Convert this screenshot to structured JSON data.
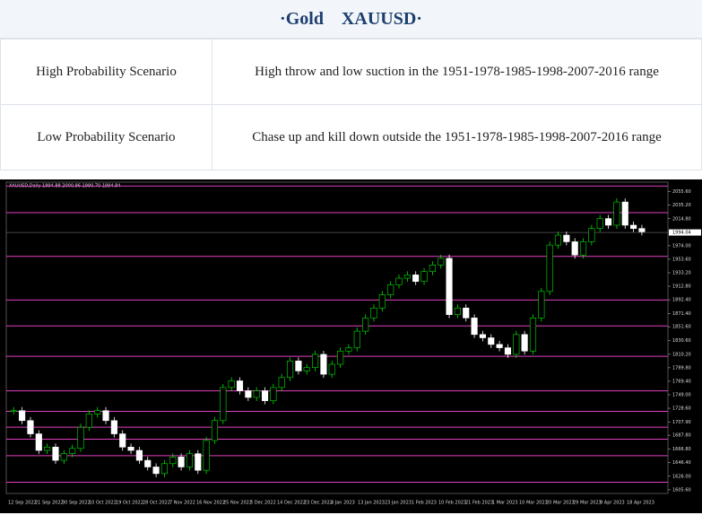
{
  "header": {
    "title": "·Gold　XAUUSD·"
  },
  "table": {
    "rows": [
      [
        "High Probability Scenario",
        "High throw and low suction in the 1951-1978-1985-1998-2007-2016 range"
      ],
      [
        "Low Probability Scenario",
        "Chase up and kill down outside the 1951-1978-1985-1998-2007-2016 range"
      ]
    ]
  },
  "chart": {
    "label": "XAUUSD,Daily  1994.88 2000.86 1990.70 1994.84",
    "ylim": [
      1600,
      2070
    ],
    "yticks": [
      {
        "value": 2055.6,
        "label": "2055.60"
      },
      {
        "value": 2035.2,
        "label": "2035.20"
      },
      {
        "value": 2014.8,
        "label": "2014.80"
      },
      {
        "value": 1974,
        "label": "1974.00"
      },
      {
        "value": 1953.6,
        "label": "1953.60"
      },
      {
        "value": 1933.2,
        "label": "1933.20"
      },
      {
        "value": 1912.8,
        "label": "1912.80"
      },
      {
        "value": 1892.4,
        "label": "1892.40"
      },
      {
        "value": 1871.4,
        "label": "1871.40"
      },
      {
        "value": 1851.6,
        "label": "1851.60"
      },
      {
        "value": 1830.6,
        "label": "1830.60"
      },
      {
        "value": 1810.2,
        "label": "1810.20"
      },
      {
        "value": 1789.8,
        "label": "1789.80"
      },
      {
        "value": 1769.4,
        "label": "1769.40"
      },
      {
        "value": 1749,
        "label": "1749.00"
      },
      {
        "value": 1728.6,
        "label": "1728.60"
      },
      {
        "value": 1707.9,
        "label": "1707.90"
      },
      {
        "value": 1687.8,
        "label": "1687.80"
      },
      {
        "value": 1666.8,
        "label": "1666.80"
      },
      {
        "value": 1646.4,
        "label": "1646.40"
      },
      {
        "value": 1626,
        "label": "1626.00"
      },
      {
        "value": 1605.6,
        "label": "1605.60"
      }
    ],
    "current": {
      "value": 1994.04,
      "label": "1994.04"
    },
    "levels": [
      2064,
      2024,
      1958,
      1892,
      1853,
      1807,
      1755,
      1724,
      1700,
      1682,
      1657,
      1617
    ],
    "dates": [
      "12 Sep 2022",
      "21 Sep 2022",
      "30 Sep 2022",
      "10 Oct 2022",
      "19 Oct 2022",
      "28 Oct 2022",
      "7 Nov 2022",
      "16 Nov 2022",
      "25 Nov 2022",
      "5 Dec 2022",
      "14 Dec 2022",
      "23 Dec 2022",
      "4 Jan 2023",
      "13 Jan 2023",
      "23 Jan 2023",
      "1 Feb 2023",
      "10 Feb 2023",
      "21 Feb 2023",
      "1 Mar 2023",
      "10 Mar 2023",
      "20 Mar 2023",
      "29 Mar 2023",
      "9 Apr 2023",
      "18 Apr 2023"
    ],
    "closes": [
      1725,
      1710,
      1690,
      1665,
      1670,
      1650,
      1660,
      1668,
      1700,
      1720,
      1725,
      1710,
      1690,
      1670,
      1665,
      1650,
      1640,
      1630,
      1645,
      1655,
      1640,
      1660,
      1635,
      1680,
      1710,
      1760,
      1770,
      1755,
      1745,
      1755,
      1740,
      1760,
      1775,
      1800,
      1785,
      1790,
      1810,
      1780,
      1795,
      1815,
      1820,
      1845,
      1865,
      1880,
      1900,
      1915,
      1925,
      1930,
      1920,
      1935,
      1945,
      1955,
      1870,
      1880,
      1865,
      1840,
      1835,
      1825,
      1820,
      1810,
      1840,
      1815,
      1865,
      1905,
      1975,
      1990,
      1980,
      1960,
      1980,
      2000,
      2015,
      2005,
      2040,
      2005,
      2000,
      1995
    ]
  }
}
